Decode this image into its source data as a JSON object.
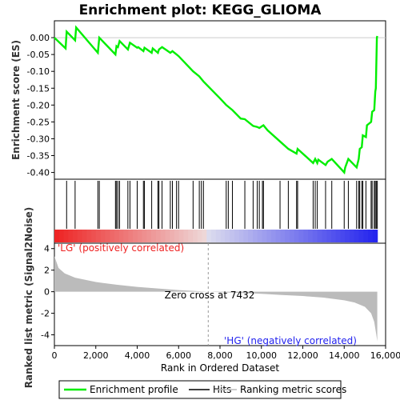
{
  "chart_data": {
    "type": "line",
    "title": "Enrichment plot: KEGG_GLIOMA",
    "top_panel": {
      "ylabel": "Enrichment score (ES)",
      "ylim": [
        -0.42,
        0.05
      ],
      "yticks": [
        0.0,
        -0.05,
        -0.1,
        -0.15,
        -0.2,
        -0.25,
        -0.3,
        -0.35,
        -0.4
      ],
      "ytick_labels": [
        "0.00",
        "-0.05",
        "-0.10",
        "-0.15",
        "-0.20",
        "-0.25",
        "-0.30",
        "-0.35",
        "-0.40"
      ],
      "series": [
        {
          "name": "Enrichment profile",
          "color": "#00ee00",
          "points": [
            [
              0,
              0.0
            ],
            [
              540,
              -0.032
            ],
            [
              590,
              0.018
            ],
            [
              1000,
              -0.008
            ],
            [
              1050,
              0.03
            ],
            [
              2100,
              -0.045
            ],
            [
              2170,
              0.0
            ],
            [
              2950,
              -0.05
            ],
            [
              3000,
              -0.025
            ],
            [
              3070,
              -0.028
            ],
            [
              3150,
              -0.01
            ],
            [
              3550,
              -0.035
            ],
            [
              3650,
              -0.015
            ],
            [
              4000,
              -0.03
            ],
            [
              4050,
              -0.028
            ],
            [
              4300,
              -0.04
            ],
            [
              4350,
              -0.03
            ],
            [
              4700,
              -0.045
            ],
            [
              4750,
              -0.032
            ],
            [
              5000,
              -0.045
            ],
            [
              5050,
              -0.035
            ],
            [
              5200,
              -0.028
            ],
            [
              5600,
              -0.045
            ],
            [
              5700,
              -0.04
            ],
            [
              5900,
              -0.05
            ],
            [
              6000,
              -0.055
            ],
            [
              6700,
              -0.1
            ],
            [
              7000,
              -0.115
            ],
            [
              7200,
              -0.13
            ],
            [
              8000,
              -0.18
            ],
            [
              8300,
              -0.2
            ],
            [
              8600,
              -0.215
            ],
            [
              9000,
              -0.24
            ],
            [
              9200,
              -0.242
            ],
            [
              9600,
              -0.262
            ],
            [
              9800,
              -0.265
            ],
            [
              9900,
              -0.268
            ],
            [
              10050,
              -0.262
            ],
            [
              10100,
              -0.26
            ],
            [
              10300,
              -0.275
            ],
            [
              10900,
              -0.308
            ],
            [
              11300,
              -0.33
            ],
            [
              11700,
              -0.344
            ],
            [
              11750,
              -0.33
            ],
            [
              12500,
              -0.372
            ],
            [
              12600,
              -0.36
            ],
            [
              12700,
              -0.372
            ],
            [
              12750,
              -0.362
            ],
            [
              13100,
              -0.378
            ],
            [
              13200,
              -0.368
            ],
            [
              13400,
              -0.36
            ],
            [
              14000,
              -0.4
            ],
            [
              14050,
              -0.385
            ],
            [
              14200,
              -0.36
            ],
            [
              14600,
              -0.385
            ],
            [
              14700,
              -0.36
            ],
            [
              14750,
              -0.33
            ],
            [
              14850,
              -0.325
            ],
            [
              14900,
              -0.29
            ],
            [
              15050,
              -0.295
            ],
            [
              15100,
              -0.26
            ],
            [
              15300,
              -0.25
            ],
            [
              15350,
              -0.22
            ],
            [
              15450,
              -0.215
            ],
            [
              15500,
              -0.16
            ],
            [
              15530,
              -0.15
            ],
            [
              15550,
              -0.08
            ],
            [
              15580,
              0.0
            ],
            [
              15600,
              0.005
            ]
          ]
        }
      ]
    },
    "hits_panel": {
      "name": "Hits",
      "positions": [
        590,
        1000,
        2100,
        2170,
        2950,
        3000,
        3070,
        3150,
        3550,
        3650,
        4000,
        4300,
        4350,
        4700,
        5000,
        5050,
        5200,
        5600,
        5700,
        5900,
        6000,
        6700,
        7000,
        7100,
        7200,
        8300,
        8400,
        8600,
        9200,
        9600,
        9800,
        9900,
        10050,
        10100,
        10900,
        11300,
        11700,
        11750,
        12500,
        12600,
        12700,
        13100,
        13400,
        14000,
        14200,
        14600,
        14700,
        14750,
        14850,
        14900,
        15050,
        15300,
        15350,
        15450,
        15500,
        15550,
        15600
      ]
    },
    "bottom_panel": {
      "name": "Ranking metric scores",
      "ylabel": "Ranked list metric (Signal2Noise)",
      "ylim": [
        -5,
        4.5
      ],
      "yticks": [
        4,
        2,
        0,
        -2,
        -4
      ],
      "ytick_labels": [
        "4",
        "2",
        "0",
        "-2",
        "-4"
      ],
      "metric_profile": [
        [
          0,
          3.3
        ],
        [
          200,
          2.2
        ],
        [
          500,
          1.7
        ],
        [
          1000,
          1.3
        ],
        [
          2000,
          0.9
        ],
        [
          3000,
          0.65
        ],
        [
          4000,
          0.45
        ],
        [
          5000,
          0.3
        ],
        [
          6000,
          0.15
        ],
        [
          7000,
          0.05
        ],
        [
          7432,
          0.0
        ],
        [
          8000,
          -0.05
        ],
        [
          9000,
          -0.12
        ],
        [
          10000,
          -0.2
        ],
        [
          11000,
          -0.3
        ],
        [
          12000,
          -0.4
        ],
        [
          13000,
          -0.55
        ],
        [
          14000,
          -0.8
        ],
        [
          14500,
          -1.0
        ],
        [
          15000,
          -1.4
        ],
        [
          15300,
          -2.0
        ],
        [
          15450,
          -2.8
        ],
        [
          15550,
          -4.0
        ],
        [
          15600,
          -4.6
        ]
      ],
      "zero_cross_label": "Zero cross at 7432",
      "zero_cross": 7432,
      "positive_label": "'LG' (positively correlated)",
      "negative_label": "'HG' (negatively correlated)"
    },
    "xlabel": "Rank in Ordered Dataset",
    "xlim": [
      0,
      16000
    ],
    "xticks": [
      0,
      2000,
      4000,
      6000,
      8000,
      10000,
      12000,
      14000,
      16000
    ],
    "xtick_labels": [
      "0",
      "2,000",
      "4,000",
      "6,000",
      "8,000",
      "10,000",
      "12,000",
      "14,000",
      "16,000"
    ],
    "legend": {
      "placement": "bottom",
      "entries": [
        {
          "label": "Enrichment profile",
          "color": "#00ee00"
        },
        {
          "label": "Hits",
          "color": "#000000"
        },
        {
          "label": "Ranking metric scores",
          "color": "#bbbbbb"
        }
      ]
    },
    "colors": {
      "positive": "#ee2222",
      "negative": "#2222ee",
      "metric_fill": "#bbbbbb"
    }
  }
}
